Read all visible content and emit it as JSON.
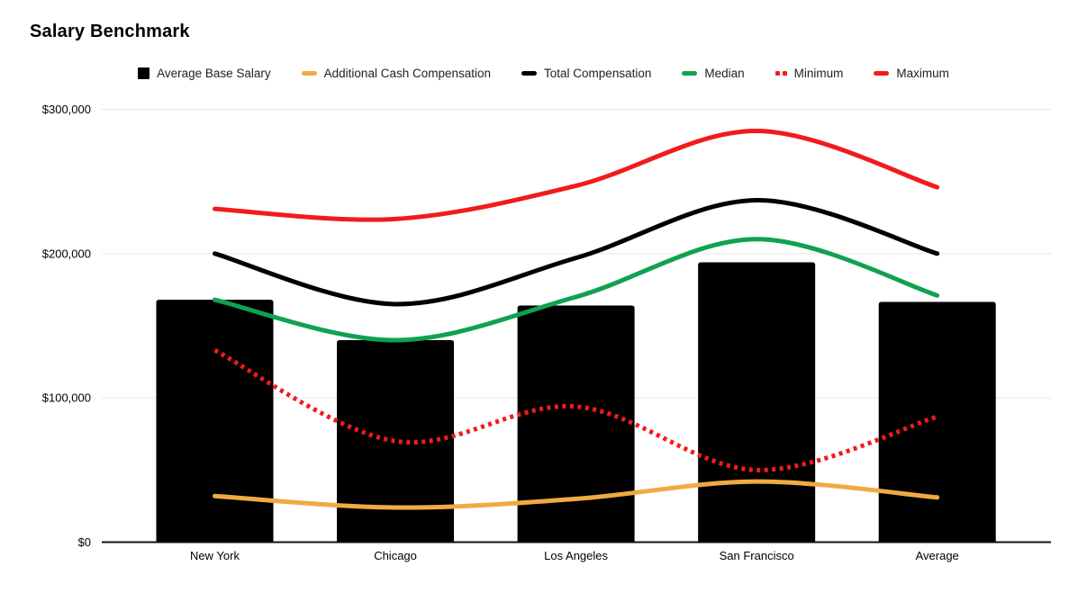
{
  "title": "Salary Benchmark",
  "legend": {
    "position": "top",
    "items": [
      {
        "label": "Average Base Salary",
        "swatch": "square",
        "color": "#000000"
      },
      {
        "label": "Additional Cash Compensation",
        "swatch": "dash",
        "color": "#EFAB40"
      },
      {
        "label": "Total Compensation",
        "swatch": "dash",
        "color": "#000000"
      },
      {
        "label": "Median",
        "swatch": "dash",
        "color": "#10A152"
      },
      {
        "label": "Minimum",
        "swatch": "dots",
        "color": "#F21B1B"
      },
      {
        "label": "Maximum",
        "swatch": "dash",
        "color": "#F21B1B"
      }
    ]
  },
  "chart_data": {
    "type": "combo (bar + smooth lines)",
    "title": "Salary Benchmark",
    "xlabel": "",
    "ylabel": "",
    "categories": [
      "New York",
      "Chicago",
      "Los Angeles",
      "San Francisco",
      "Average"
    ],
    "series": [
      {
        "name": "Average Base Salary",
        "type": "bar",
        "style": "solid",
        "color": "#000000",
        "values": [
          168000,
          140000,
          164000,
          194000,
          166500
        ]
      },
      {
        "name": "Additional Cash Compensation",
        "type": "line",
        "style": "solid",
        "color": "#EFAB40",
        "values": [
          32000,
          24000,
          30000,
          42000,
          31000
        ]
      },
      {
        "name": "Total Compensation",
        "type": "line",
        "style": "solid",
        "color": "#000000",
        "values": [
          200000,
          165000,
          197000,
          237000,
          200000
        ]
      },
      {
        "name": "Median",
        "type": "line",
        "style": "solid",
        "color": "#10A152",
        "values": [
          168000,
          140000,
          170000,
          210000,
          171000
        ]
      },
      {
        "name": "Minimum",
        "type": "line",
        "style": "dotted",
        "color": "#F21B1B",
        "values": [
          133000,
          70000,
          94000,
          50000,
          87000
        ]
      },
      {
        "name": "Maximum",
        "type": "line",
        "style": "solid",
        "color": "#F21B1B",
        "values": [
          231000,
          224000,
          247000,
          285000,
          246000
        ]
      }
    ],
    "ylim": [
      0,
      300000
    ],
    "y_ticks": [
      {
        "value": 0,
        "label": "$0"
      },
      {
        "value": 100000,
        "label": "$100,000"
      },
      {
        "value": 200000,
        "label": "$200,000"
      },
      {
        "value": 300000,
        "label": "$300,000"
      }
    ],
    "grid": "horizontal gridlines on",
    "legend_position": "top",
    "line_smoothing": true
  },
  "colors": {
    "background": "#FFFFFF",
    "gridline": "#E6E6E6",
    "axis_line": "#111111",
    "tick_text": "#000000",
    "legend_text": "#1F1F1F"
  }
}
